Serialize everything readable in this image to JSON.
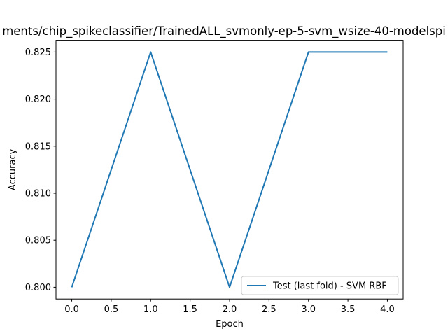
{
  "chart_data": {
    "type": "line",
    "title": "ments/chip_spikeclassifier/TrainedALL_svmonly-ep-5-svm_wsize-40-modelspi",
    "xlabel": "Epoch",
    "ylabel": "Accuracy",
    "xlim": [
      -0.2,
      4.2
    ],
    "ylim": [
      0.79875,
      0.82625
    ],
    "xticks": [
      0.0,
      0.5,
      1.0,
      1.5,
      2.0,
      2.5,
      3.0,
      3.5,
      4.0
    ],
    "xtick_labels": [
      "0.0",
      "0.5",
      "1.0",
      "1.5",
      "2.0",
      "2.5",
      "3.0",
      "3.5",
      "4.0"
    ],
    "yticks": [
      0.8,
      0.805,
      0.81,
      0.815,
      0.82,
      0.825
    ],
    "ytick_labels": [
      "0.800",
      "0.805",
      "0.810",
      "0.815",
      "0.820",
      "0.825"
    ],
    "grid": false,
    "legend_position": "lower-right",
    "series": [
      {
        "name": "Test (last fold) - SVM RBF",
        "color": "#1f77b4",
        "x": [
          0,
          1,
          2,
          3,
          4
        ],
        "y": [
          0.8,
          0.825,
          0.8,
          0.825,
          0.825
        ]
      }
    ]
  }
}
